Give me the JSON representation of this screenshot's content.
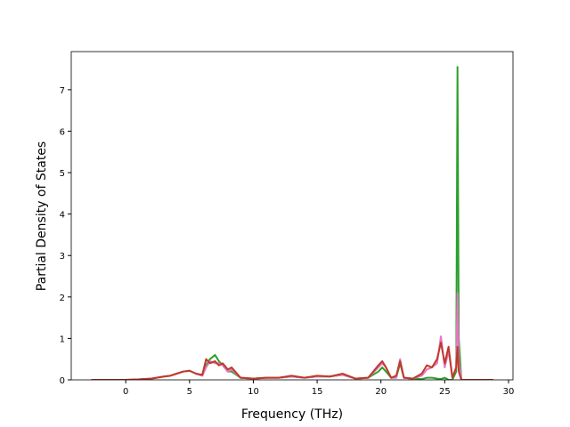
{
  "chart_data": {
    "type": "line",
    "x_label": "Frequency (THz)",
    "y_label": "Partial Density of States",
    "x": [
      -2.7,
      0,
      1,
      2,
      3,
      3.5,
      4,
      4.5,
      5,
      5.5,
      6,
      6.3,
      6.6,
      7,
      7.3,
      7.6,
      8,
      8.3,
      9,
      10,
      11,
      12,
      13,
      14,
      15,
      16,
      17,
      18,
      19,
      19.8,
      20.1,
      20.4,
      20.8,
      21.2,
      21.5,
      21.8,
      22.5,
      23.2,
      23.6,
      24,
      24.4,
      24.7,
      25,
      25.3,
      25.6,
      25.9,
      26.0,
      26.1,
      26.3,
      27,
      28.8
    ],
    "series": [
      {
        "color": "#2ca02c",
        "values": [
          0,
          0,
          0.01,
          0.03,
          0.08,
          0.1,
          0.15,
          0.2,
          0.22,
          0.15,
          0.1,
          0.35,
          0.5,
          0.6,
          0.45,
          0.35,
          0.2,
          0.2,
          0.05,
          0.03,
          0.05,
          0.05,
          0.08,
          0.05,
          0.08,
          0.08,
          0.12,
          0.03,
          0.05,
          0.2,
          0.3,
          0.2,
          0.05,
          0.05,
          0.4,
          0.05,
          0.03,
          0.02,
          0.05,
          0.05,
          0.03,
          0.02,
          0.05,
          0,
          0,
          0.2,
          7.55,
          1.0,
          0,
          0,
          0
        ]
      },
      {
        "color": "#e377c2",
        "values": [
          0,
          0,
          0.01,
          0.03,
          0.08,
          0.1,
          0.15,
          0.2,
          0.22,
          0.15,
          0.1,
          0.3,
          0.45,
          0.4,
          0.4,
          0.35,
          0.2,
          0.25,
          0.05,
          0.03,
          0.05,
          0.05,
          0.08,
          0.05,
          0.08,
          0.08,
          0.12,
          0.03,
          0.05,
          0.3,
          0.4,
          0.3,
          0.05,
          0.05,
          0.5,
          0.05,
          0.03,
          0.1,
          0.25,
          0.3,
          0.4,
          1.05,
          0.3,
          0.7,
          0.05,
          0.3,
          2.1,
          0.5,
          0,
          0,
          0
        ]
      },
      {
        "color": "#c0392b",
        "values": [
          0,
          0,
          0.01,
          0.03,
          0.08,
          0.1,
          0.15,
          0.2,
          0.22,
          0.15,
          0.12,
          0.5,
          0.4,
          0.45,
          0.35,
          0.4,
          0.25,
          0.3,
          0.05,
          0.03,
          0.05,
          0.05,
          0.1,
          0.05,
          0.1,
          0.08,
          0.15,
          0.03,
          0.05,
          0.35,
          0.45,
          0.3,
          0.05,
          0.1,
          0.45,
          0.05,
          0.03,
          0.15,
          0.35,
          0.3,
          0.5,
          0.9,
          0.4,
          0.8,
          0.05,
          0.3,
          0.8,
          0.2,
          0,
          0,
          0
        ]
      }
    ],
    "xlim": [
      -4.27,
      30.35
    ],
    "ylim": [
      0,
      7.92
    ],
    "xticks": [
      0,
      5,
      10,
      15,
      20,
      25,
      30
    ],
    "yticks": [
      0,
      1,
      2,
      3,
      4,
      5,
      6,
      7
    ]
  }
}
